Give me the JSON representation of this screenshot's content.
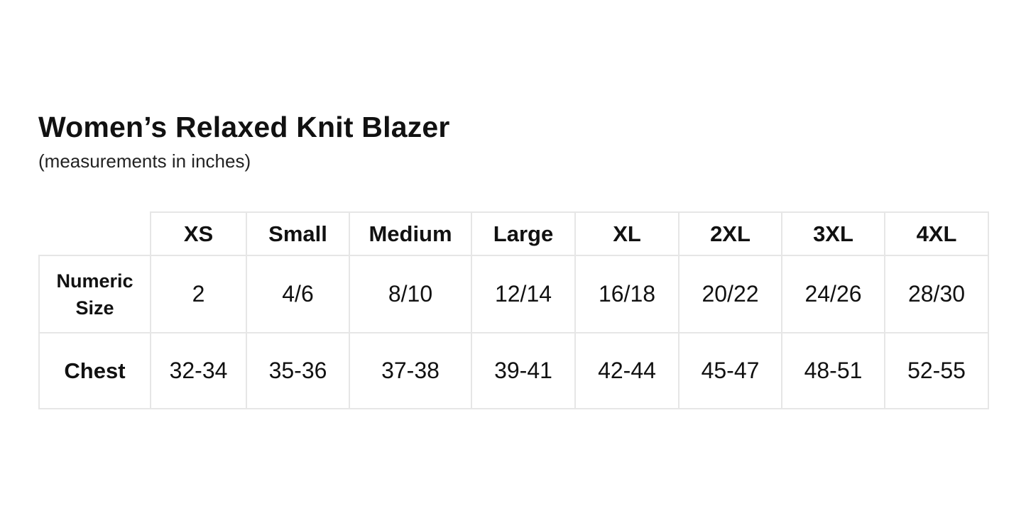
{
  "title": "Women’s Relaxed Knit Blazer",
  "subtitle": "(measurements in inches)",
  "table": {
    "headers": [
      "XS",
      "Small",
      "Medium",
      "Large",
      "XL",
      "2XL",
      "3XL",
      "4XL"
    ],
    "rows": [
      {
        "label_line1": "Numeric",
        "label_line2": "Size",
        "values": [
          "2",
          "4/6",
          "8/10",
          "12/14",
          "16/18",
          "20/22",
          "24/26",
          "28/30"
        ]
      },
      {
        "label_line1": "Chest",
        "values": [
          "32-34",
          "35-36",
          "37-38",
          "39-41",
          "42-44",
          "45-47",
          "48-51",
          "52-55"
        ]
      }
    ]
  }
}
